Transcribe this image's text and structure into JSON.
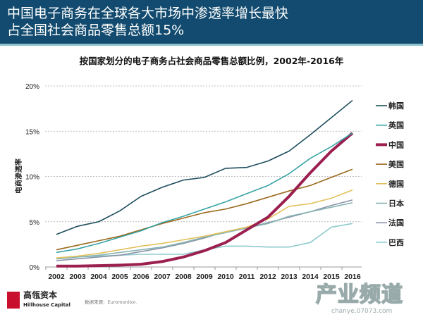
{
  "header": {
    "line1": "中国电子商务在全球各大市场中渗透率增长最快",
    "line2": "占全国社会商品零售总额15%"
  },
  "chart_data": {
    "type": "line",
    "title": "按国家划分的电子商务占社会商品零售总额比例，2002年-2016年",
    "ylabel": "电商渗透率",
    "xlabel": "",
    "x": [
      2002,
      2003,
      2004,
      2005,
      2006,
      2007,
      2008,
      2009,
      2010,
      2011,
      2012,
      2013,
      2014,
      2015,
      2016
    ],
    "ylim": [
      0,
      20
    ],
    "yticks": [
      "0%",
      "5%",
      "10%",
      "15%",
      "20%"
    ],
    "grid": "horizontal dashed",
    "legend": "right",
    "series": [
      {
        "name": "韩国",
        "color": "#1e4d5e",
        "values": [
          3.6,
          4.5,
          5.0,
          6.2,
          7.8,
          8.8,
          9.6,
          9.9,
          10.9,
          11.0,
          11.7,
          12.8,
          14.6,
          16.5,
          18.4
        ]
      },
      {
        "name": "英国",
        "color": "#3aa3a6",
        "values": [
          1.6,
          2.0,
          2.6,
          3.3,
          4.0,
          4.9,
          5.6,
          6.4,
          7.2,
          8.1,
          9.0,
          10.3,
          12.0,
          13.3,
          14.8
        ]
      },
      {
        "name": "中国",
        "color": "#9b1f4f",
        "values": [
          0.1,
          0.1,
          0.15,
          0.2,
          0.3,
          0.6,
          1.1,
          1.8,
          2.7,
          4.1,
          5.5,
          7.8,
          10.4,
          12.8,
          14.8
        ]
      },
      {
        "name": "美国",
        "color": "#9c6a1e",
        "values": [
          1.9,
          2.4,
          2.9,
          3.4,
          4.1,
          4.8,
          5.4,
          6.0,
          6.4,
          7.0,
          7.7,
          8.4,
          9.0,
          9.9,
          10.8
        ]
      },
      {
        "name": "德国",
        "color": "#e2c15c",
        "values": [
          1.0,
          1.2,
          1.5,
          1.9,
          2.3,
          2.6,
          3.0,
          3.4,
          3.9,
          4.4,
          5.3,
          6.7,
          7.0,
          7.6,
          8.5
        ]
      },
      {
        "name": "日本",
        "color": "#86b4b3",
        "values": [
          0.9,
          1.1,
          1.3,
          1.6,
          1.9,
          2.2,
          2.7,
          3.3,
          3.8,
          4.3,
          4.8,
          5.6,
          6.1,
          6.6,
          7.1
        ]
      },
      {
        "name": "法国",
        "color": "#8a93a8",
        "values": [
          0.7,
          0.9,
          1.1,
          1.3,
          1.7,
          2.1,
          2.6,
          3.2,
          3.9,
          4.3,
          4.9,
          5.5,
          6.1,
          6.8,
          7.4
        ]
      },
      {
        "name": "巴西",
        "color": "#8fcacd",
        "values": [
          0.9,
          1.1,
          1.2,
          1.3,
          1.4,
          1.4,
          1.4,
          1.9,
          2.3,
          2.3,
          2.2,
          2.2,
          2.7,
          4.4,
          4.8
        ]
      }
    ]
  },
  "footer": {
    "brand": "高瓴资本",
    "brand_en": "Hillhouse Capital",
    "source": "数据来源：Euromonitor.",
    "watermark": "产业频道",
    "watermark_url": "chanye.07073.com"
  }
}
